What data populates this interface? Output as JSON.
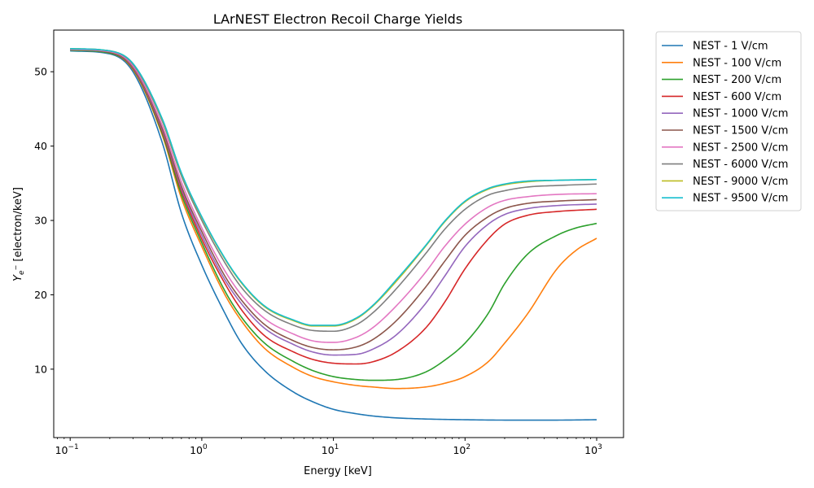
{
  "chart_data": {
    "type": "line",
    "title": "LArNEST Electron Recoil Charge Yields",
    "xlabel": "Energy [keV]",
    "ylabel": "$Y_{e^-}$ [electron/keV]",
    "ylabel_main": "Y",
    "ylabel_sub": "e",
    "ylabel_sup": "−",
    "ylabel_units": "[electron/keV]",
    "x_scale": "log",
    "xlim": [
      0.075,
      1600
    ],
    "ylim": [
      0.8,
      55.6
    ],
    "x_ticks": [
      {
        "value": 0.1,
        "base": "10",
        "exp": "−1"
      },
      {
        "value": 1,
        "base": "10",
        "exp": "0"
      },
      {
        "value": 10,
        "base": "10",
        "exp": "1"
      },
      {
        "value": 100,
        "base": "10",
        "exp": "2"
      },
      {
        "value": 1000,
        "base": "10",
        "exp": "3"
      }
    ],
    "y_ticks": [
      10,
      20,
      30,
      40,
      50
    ],
    "grid": false,
    "legend_position": "outside-top-right",
    "series": [
      {
        "name": "NEST - 1 V/cm",
        "color": "#1f77b4",
        "points": [
          [
            0.1,
            52.8
          ],
          [
            0.2,
            52.4
          ],
          [
            0.3,
            50.0
          ],
          [
            0.5,
            40.5
          ],
          [
            0.7,
            31.0
          ],
          [
            1,
            24.0
          ],
          [
            1.5,
            17.5
          ],
          [
            2,
            13.5
          ],
          [
            3,
            9.8
          ],
          [
            5,
            6.9
          ],
          [
            7,
            5.6
          ],
          [
            10,
            4.6
          ],
          [
            15,
            4.0
          ],
          [
            20,
            3.7
          ],
          [
            30,
            3.45
          ],
          [
            50,
            3.3
          ],
          [
            100,
            3.2
          ],
          [
            200,
            3.15
          ],
          [
            500,
            3.15
          ],
          [
            1000,
            3.2
          ]
        ]
      },
      {
        "name": "NEST - 100 V/cm",
        "color": "#ff7f0e",
        "points": [
          [
            0.1,
            52.9
          ],
          [
            0.2,
            52.5
          ],
          [
            0.3,
            50.3
          ],
          [
            0.5,
            41.5
          ],
          [
            0.7,
            33.0
          ],
          [
            1,
            26.5
          ],
          [
            1.5,
            20.0
          ],
          [
            2,
            16.5
          ],
          [
            3,
            12.8
          ],
          [
            5,
            10.2
          ],
          [
            7,
            9.0
          ],
          [
            10,
            8.3
          ],
          [
            15,
            7.8
          ],
          [
            20,
            7.6
          ],
          [
            30,
            7.4
          ],
          [
            50,
            7.6
          ],
          [
            70,
            8.1
          ],
          [
            100,
            9.0
          ],
          [
            150,
            11.0
          ],
          [
            200,
            13.5
          ],
          [
            300,
            17.5
          ],
          [
            500,
            23.5
          ],
          [
            700,
            26.0
          ],
          [
            1000,
            27.6
          ]
        ]
      },
      {
        "name": "NEST - 200 V/cm",
        "color": "#2ca02c",
        "points": [
          [
            0.1,
            52.9
          ],
          [
            0.2,
            52.5
          ],
          [
            0.3,
            50.4
          ],
          [
            0.5,
            41.7
          ],
          [
            0.7,
            33.5
          ],
          [
            1,
            27.0
          ],
          [
            1.5,
            20.5
          ],
          [
            2,
            17.0
          ],
          [
            3,
            13.5
          ],
          [
            5,
            11.0
          ],
          [
            7,
            9.8
          ],
          [
            10,
            9.0
          ],
          [
            15,
            8.6
          ],
          [
            20,
            8.5
          ],
          [
            30,
            8.6
          ],
          [
            50,
            9.6
          ],
          [
            70,
            11.2
          ],
          [
            100,
            13.5
          ],
          [
            150,
            17.5
          ],
          [
            200,
            21.5
          ],
          [
            300,
            25.5
          ],
          [
            500,
            28.0
          ],
          [
            700,
            29.0
          ],
          [
            1000,
            29.6
          ]
        ]
      },
      {
        "name": "NEST - 600 V/cm",
        "color": "#d62728",
        "points": [
          [
            0.1,
            53.0
          ],
          [
            0.2,
            52.6
          ],
          [
            0.3,
            50.5
          ],
          [
            0.5,
            42.0
          ],
          [
            0.7,
            34.0
          ],
          [
            1,
            27.5
          ],
          [
            1.5,
            21.5
          ],
          [
            2,
            18.0
          ],
          [
            3,
            14.5
          ],
          [
            5,
            12.3
          ],
          [
            7,
            11.3
          ],
          [
            10,
            10.8
          ],
          [
            15,
            10.7
          ],
          [
            20,
            11.0
          ],
          [
            30,
            12.3
          ],
          [
            50,
            15.5
          ],
          [
            70,
            19.0
          ],
          [
            100,
            23.5
          ],
          [
            150,
            27.5
          ],
          [
            200,
            29.5
          ],
          [
            300,
            30.7
          ],
          [
            500,
            31.2
          ],
          [
            1000,
            31.5
          ]
        ]
      },
      {
        "name": "NEST - 1000 V/cm",
        "color": "#9467bd",
        "points": [
          [
            0.1,
            53.0
          ],
          [
            0.2,
            52.6
          ],
          [
            0.3,
            50.6
          ],
          [
            0.5,
            42.2
          ],
          [
            0.7,
            34.3
          ],
          [
            1,
            28.0
          ],
          [
            1.5,
            22.0
          ],
          [
            2,
            18.8
          ],
          [
            3,
            15.5
          ],
          [
            5,
            13.3
          ],
          [
            7,
            12.3
          ],
          [
            10,
            11.9
          ],
          [
            15,
            12.0
          ],
          [
            20,
            12.7
          ],
          [
            30,
            14.6
          ],
          [
            50,
            18.8
          ],
          [
            70,
            22.5
          ],
          [
            100,
            26.5
          ],
          [
            150,
            29.5
          ],
          [
            200,
            30.8
          ],
          [
            300,
            31.6
          ],
          [
            500,
            32.0
          ],
          [
            1000,
            32.2
          ]
        ]
      },
      {
        "name": "NEST - 1500 V/cm",
        "color": "#8c564b",
        "points": [
          [
            0.1,
            53.0
          ],
          [
            0.2,
            52.6
          ],
          [
            0.3,
            50.7
          ],
          [
            0.5,
            42.4
          ],
          [
            0.7,
            34.6
          ],
          [
            1,
            28.5
          ],
          [
            1.5,
            22.5
          ],
          [
            2,
            19.3
          ],
          [
            3,
            16.0
          ],
          [
            5,
            13.8
          ],
          [
            7,
            12.9
          ],
          [
            10,
            12.6
          ],
          [
            15,
            13.0
          ],
          [
            20,
            14.0
          ],
          [
            30,
            16.5
          ],
          [
            50,
            21.0
          ],
          [
            70,
            24.5
          ],
          [
            100,
            28.0
          ],
          [
            150,
            30.5
          ],
          [
            200,
            31.6
          ],
          [
            300,
            32.3
          ],
          [
            500,
            32.6
          ],
          [
            1000,
            32.8
          ]
        ]
      },
      {
        "name": "NEST - 2500 V/cm",
        "color": "#e377c2",
        "points": [
          [
            0.1,
            53.0
          ],
          [
            0.2,
            52.7
          ],
          [
            0.3,
            50.8
          ],
          [
            0.5,
            42.8
          ],
          [
            0.7,
            35.2
          ],
          [
            1,
            29.0
          ],
          [
            1.5,
            23.2
          ],
          [
            2,
            20.0
          ],
          [
            3,
            16.8
          ],
          [
            5,
            14.7
          ],
          [
            7,
            13.8
          ],
          [
            10,
            13.6
          ],
          [
            15,
            14.3
          ],
          [
            20,
            15.6
          ],
          [
            30,
            18.5
          ],
          [
            50,
            23.0
          ],
          [
            70,
            26.5
          ],
          [
            100,
            29.5
          ],
          [
            150,
            31.8
          ],
          [
            200,
            32.7
          ],
          [
            300,
            33.2
          ],
          [
            500,
            33.5
          ],
          [
            1000,
            33.6
          ]
        ]
      },
      {
        "name": "NEST - 6000 V/cm",
        "color": "#7f7f7f",
        "points": [
          [
            0.1,
            53.1
          ],
          [
            0.2,
            52.8
          ],
          [
            0.3,
            51.0
          ],
          [
            0.5,
            43.4
          ],
          [
            0.7,
            36.0
          ],
          [
            1,
            30.0
          ],
          [
            1.5,
            24.3
          ],
          [
            2,
            21.0
          ],
          [
            3,
            17.9
          ],
          [
            5,
            15.9
          ],
          [
            7,
            15.2
          ],
          [
            10,
            15.1
          ],
          [
            15,
            16.0
          ],
          [
            20,
            17.6
          ],
          [
            30,
            20.8
          ],
          [
            50,
            25.5
          ],
          [
            70,
            28.8
          ],
          [
            100,
            31.5
          ],
          [
            150,
            33.4
          ],
          [
            200,
            34.0
          ],
          [
            300,
            34.5
          ],
          [
            500,
            34.7
          ],
          [
            1000,
            34.9
          ]
        ]
      },
      {
        "name": "NEST - 9000 V/cm",
        "color": "#bcbd22",
        "points": [
          [
            0.1,
            53.1
          ],
          [
            0.2,
            52.8
          ],
          [
            0.3,
            51.1
          ],
          [
            0.5,
            43.6
          ],
          [
            0.7,
            36.3
          ],
          [
            1,
            30.4
          ],
          [
            1.5,
            24.8
          ],
          [
            2,
            21.6
          ],
          [
            3,
            18.4
          ],
          [
            5,
            16.5
          ],
          [
            7,
            15.8
          ],
          [
            10,
            15.8
          ],
          [
            15,
            16.8
          ],
          [
            20,
            18.5
          ],
          [
            30,
            21.8
          ],
          [
            50,
            26.5
          ],
          [
            70,
            29.8
          ],
          [
            100,
            32.5
          ],
          [
            150,
            34.2
          ],
          [
            200,
            34.8
          ],
          [
            300,
            35.2
          ],
          [
            500,
            35.4
          ],
          [
            1000,
            35.5
          ]
        ]
      },
      {
        "name": "NEST - 9500 V/cm",
        "color": "#17becf",
        "points": [
          [
            0.1,
            53.1
          ],
          [
            0.2,
            52.8
          ],
          [
            0.3,
            51.1
          ],
          [
            0.5,
            43.7
          ],
          [
            0.7,
            36.4
          ],
          [
            1,
            30.5
          ],
          [
            1.5,
            24.9
          ],
          [
            2,
            21.7
          ],
          [
            3,
            18.5
          ],
          [
            5,
            16.6
          ],
          [
            7,
            15.9
          ],
          [
            10,
            15.9
          ],
          [
            15,
            16.9
          ],
          [
            20,
            18.6
          ],
          [
            30,
            22.0
          ],
          [
            50,
            26.6
          ],
          [
            70,
            29.9
          ],
          [
            100,
            32.6
          ],
          [
            150,
            34.3
          ],
          [
            200,
            34.9
          ],
          [
            300,
            35.3
          ],
          [
            500,
            35.4
          ],
          [
            1000,
            35.5
          ]
        ]
      }
    ]
  }
}
